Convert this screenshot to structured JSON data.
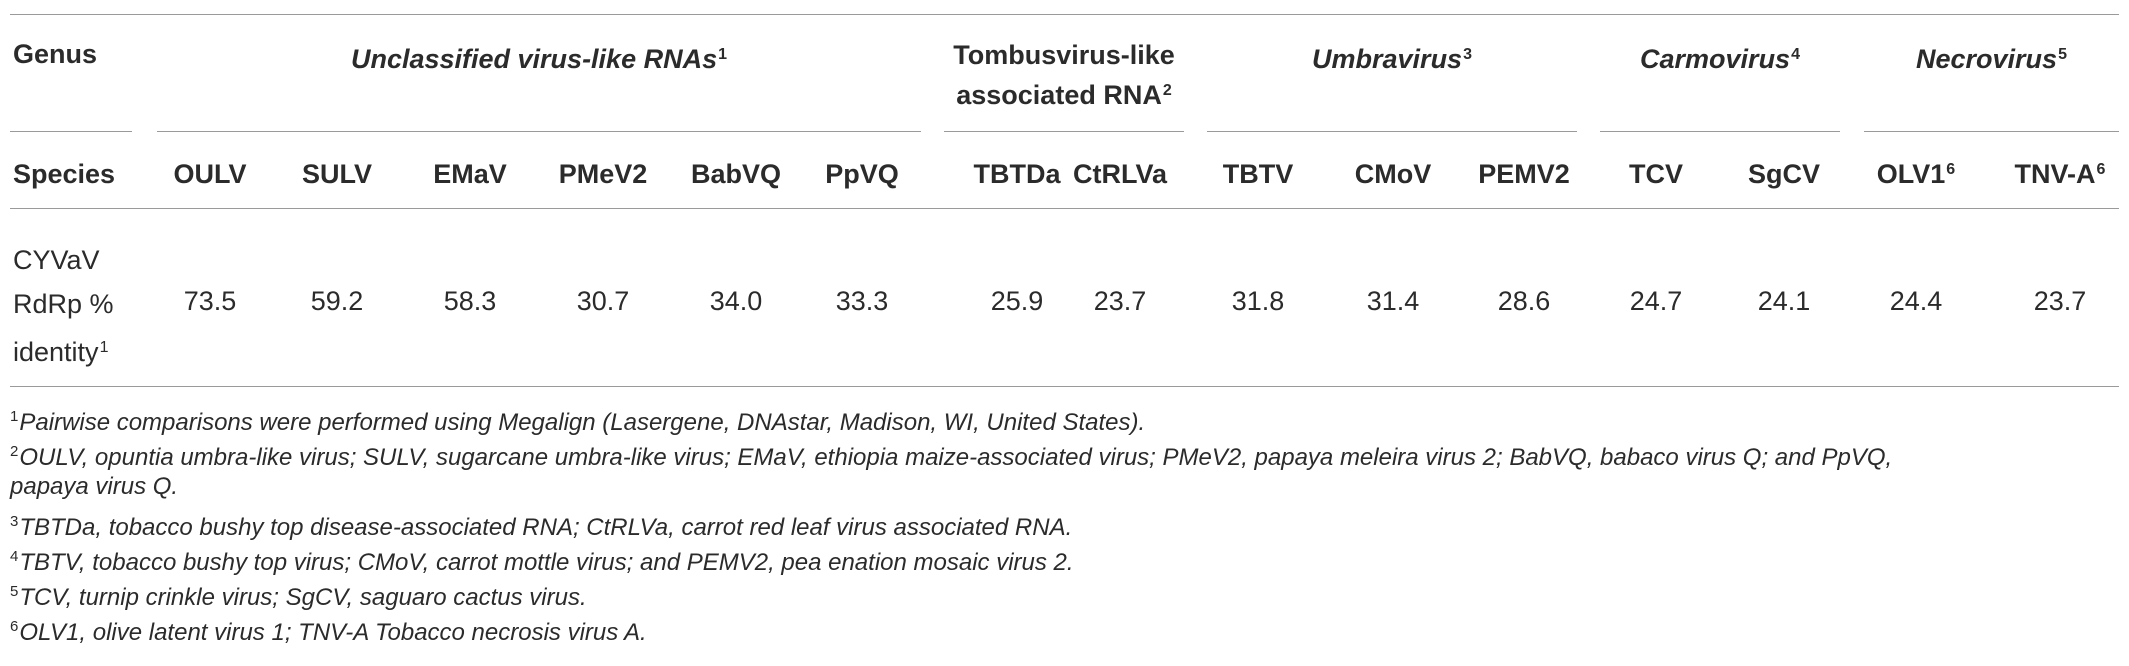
{
  "table": {
    "genus_label": "Genus",
    "species_label": "Species",
    "groups": [
      {
        "name": "Unclassified virus-like RNAs",
        "sup": "1",
        "italic": true
      },
      {
        "name": "Tombusvirus-like associated RNA",
        "sup": "2",
        "italic": false
      },
      {
        "name": "Umbravirus",
        "sup": "3",
        "italic": true
      },
      {
        "name": "Carmovirus",
        "sup": "4",
        "italic": true
      },
      {
        "name": "Necrovirus",
        "sup": "5",
        "italic": true
      }
    ],
    "tombus_line1": "Tombusvirus-like",
    "tombus_line2": "associated RNA",
    "species": [
      {
        "name": "OULV",
        "sup": ""
      },
      {
        "name": "SULV",
        "sup": ""
      },
      {
        "name": "EMaV",
        "sup": ""
      },
      {
        "name": "PMeV2",
        "sup": ""
      },
      {
        "name": "BabVQ",
        "sup": ""
      },
      {
        "name": "PpVQ",
        "sup": ""
      },
      {
        "name": "TBTDa",
        "sup": ""
      },
      {
        "name": "CtRLVa",
        "sup": ""
      },
      {
        "name": "TBTV",
        "sup": ""
      },
      {
        "name": "CMoV",
        "sup": ""
      },
      {
        "name": "PEMV2",
        "sup": ""
      },
      {
        "name": "TCV",
        "sup": ""
      },
      {
        "name": "SgCV",
        "sup": ""
      },
      {
        "name": "OLV1",
        "sup": "6"
      },
      {
        "name": "TNV-A",
        "sup": "6"
      }
    ],
    "row_label_line1": "CYVaV",
    "row_label_line2": "RdRp %",
    "row_label_line3": "identity",
    "row_label_sup": "1",
    "values": [
      "73.5",
      "59.2",
      "58.3",
      "30.7",
      "34.0",
      "33.3",
      "25.9",
      "23.7",
      "31.8",
      "31.4",
      "28.6",
      "24.7",
      "24.1",
      "24.4",
      "23.7"
    ]
  },
  "footnotes": [
    {
      "sup": "1",
      "text": "Pairwise comparisons were performed using Megalign (Lasergene, DNAstar, Madison, WI, United States)."
    },
    {
      "sup": "2",
      "text": "OULV, opuntia umbra-like virus; SULV, sugarcane umbra-like virus; EMaV, ethiopia maize-associated virus; PMeV2, papaya meleira virus 2; BabVQ, babaco virus Q; and PpVQ,"
    },
    {
      "sup": "",
      "text": "papaya virus Q."
    },
    {
      "sup": "3",
      "text": "TBTDa, tobacco bushy top disease-associated RNA; CtRLVa, carrot red leaf virus associated RNA."
    },
    {
      "sup": "4",
      "text": "TBTV, tobacco bushy top virus; CMoV, carrot mottle virus; and PEMV2, pea enation mosaic virus 2."
    },
    {
      "sup": "5",
      "text": "TCV, turnip crinkle virus; SgCV, saguaro cactus virus."
    },
    {
      "sup": "6",
      "text": "OLV1, olive latent virus 1; TNV-A Tobacco necrosis virus A."
    }
  ]
}
